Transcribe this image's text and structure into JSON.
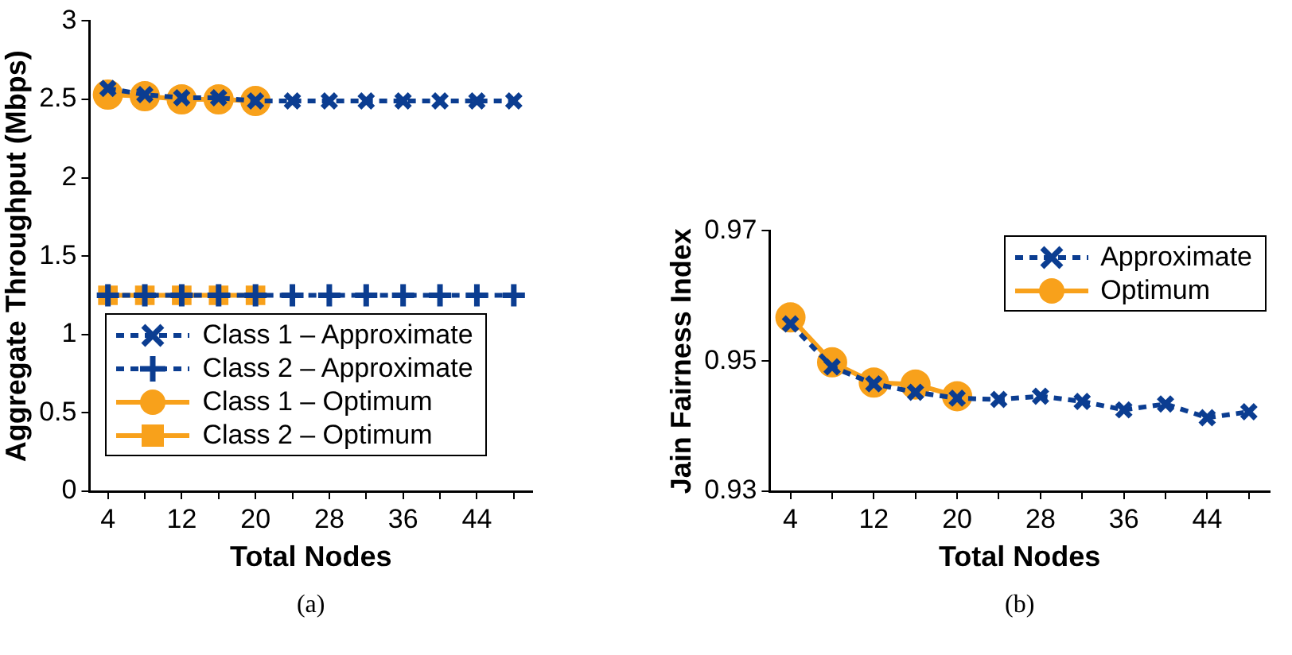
{
  "chart_data": [
    {
      "type": "line",
      "xlabel": "Total Nodes",
      "ylabel": "Aggregate Throughput (Mbps)",
      "annotations": [
        "(a)"
      ],
      "xlim": [
        2,
        50
      ],
      "xticks": [
        4,
        {
          "value": 8,
          "label": null
        },
        12,
        {
          "value": 16,
          "label": null
        },
        20,
        {
          "value": 24,
          "label": null
        },
        28,
        {
          "value": 32,
          "label": null
        },
        36,
        {
          "value": 40,
          "label": null
        },
        44,
        {
          "value": 48,
          "label": null
        }
      ],
      "ylim": [
        0,
        3
      ],
      "yticks": [
        0,
        0.5,
        1,
        1.5,
        2,
        2.5,
        3
      ],
      "legend": "bottom left",
      "series": [
        {
          "name": "Class 1 – Approximate",
          "color": "#0b3d91",
          "marker": "cross",
          "line_style": "dashed",
          "x": [
            4,
            8,
            12,
            16,
            20,
            24,
            28,
            32,
            36,
            40,
            44,
            48
          ],
          "values": [
            2.57,
            2.53,
            2.51,
            2.51,
            2.49,
            2.49,
            2.49,
            2.49,
            2.49,
            2.49,
            2.49,
            2.49
          ]
        },
        {
          "name": "Class 2 – Approximate",
          "color": "#0b3d91",
          "marker": "plus",
          "line_style": "dashed",
          "x": [
            4,
            8,
            12,
            16,
            20,
            24,
            28,
            32,
            36,
            40,
            44,
            48
          ],
          "values": [
            1.25,
            1.25,
            1.25,
            1.25,
            1.25,
            1.25,
            1.25,
            1.25,
            1.25,
            1.25,
            1.25,
            1.25
          ]
        },
        {
          "name": "Class 1 – Optimum",
          "color": "#f8a11b",
          "marker": "circle",
          "line_style": "solid",
          "x": [
            4,
            8,
            12,
            16,
            20
          ],
          "values": [
            2.53,
            2.52,
            2.5,
            2.5,
            2.49
          ]
        },
        {
          "name": "Class 2 – Optimum",
          "color": "#f8a11b",
          "marker": "square",
          "line_style": "solid",
          "x": [
            4,
            8,
            12,
            16,
            20
          ],
          "values": [
            1.25,
            1.25,
            1.25,
            1.25,
            1.25
          ]
        }
      ]
    },
    {
      "type": "line",
      "xlabel": "Total Nodes",
      "ylabel": "Jain Fairness Index",
      "annotations": [
        "(b)"
      ],
      "xlim": [
        2,
        50
      ],
      "xticks": [
        4,
        {
          "value": 8,
          "label": null
        },
        12,
        {
          "value": 16,
          "label": null
        },
        20,
        {
          "value": 24,
          "label": null
        },
        28,
        {
          "value": 32,
          "label": null
        },
        36,
        {
          "value": 40,
          "label": null
        },
        44,
        {
          "value": 48,
          "label": null
        }
      ],
      "ylim": [
        0.93,
        0.97
      ],
      "yticks": [
        0.93,
        0.95,
        0.97
      ],
      "legend": "top right",
      "series": [
        {
          "name": "Approximate",
          "color": "#0b3d91",
          "marker": "cross",
          "line_style": "dashed",
          "x": [
            4,
            8,
            12,
            16,
            20,
            24,
            28,
            32,
            36,
            40,
            44,
            48
          ],
          "values": [
            0.9557,
            0.9491,
            0.9465,
            0.9452,
            0.9443,
            0.9441,
            0.9446,
            0.9438,
            0.9425,
            0.9434,
            0.9413,
            0.9422
          ]
        },
        {
          "name": "Optimum",
          "color": "#f8a11b",
          "marker": "circle",
          "line_style": "solid",
          "x": [
            4,
            8,
            12,
            16,
            20
          ],
          "values": [
            0.9567,
            0.9498,
            0.9467,
            0.9464,
            0.9446
          ]
        }
      ]
    }
  ]
}
